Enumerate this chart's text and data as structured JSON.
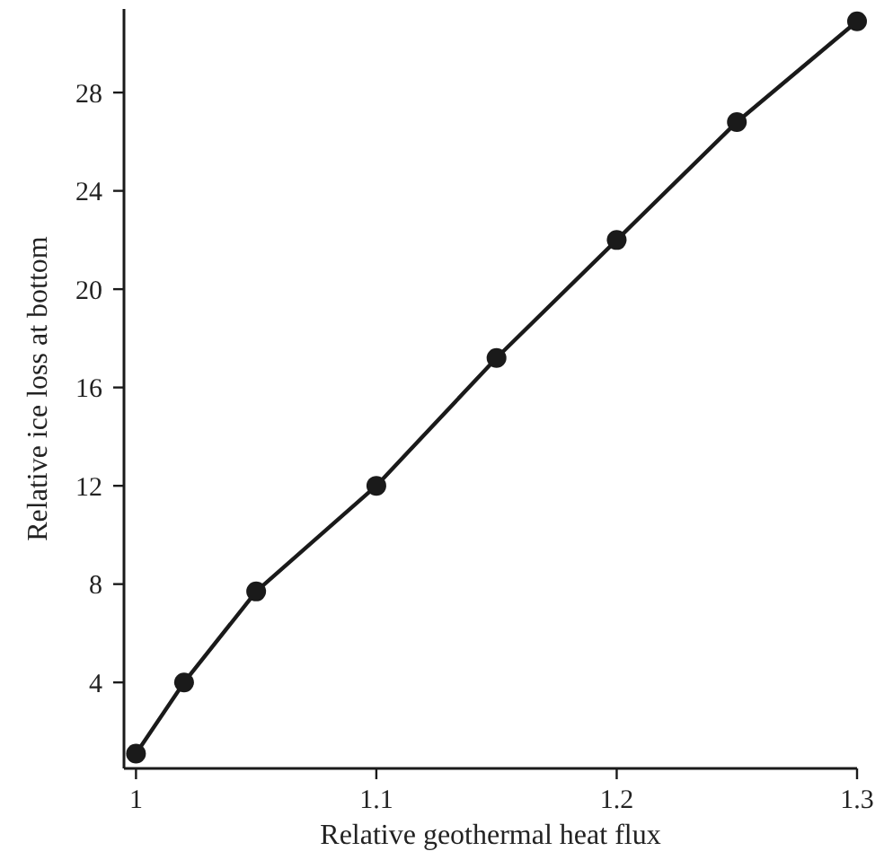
{
  "chart_data": {
    "type": "line",
    "xlabel": "Relative geothermal heat flux",
    "ylabel": "Relative ice loss at bottom",
    "x": [
      1,
      1.02,
      1.05,
      1.1,
      1.15,
      1.2,
      1.25,
      1.3
    ],
    "series": [
      {
        "color": "#1a1a1a",
        "values": [
          1.1,
          4.0,
          7.7,
          12.0,
          17.2,
          22.0,
          26.8,
          30.9
        ]
      }
    ],
    "xlim": [
      0.995,
      1.3
    ],
    "ylim": [
      0.5,
      31.4
    ],
    "xticks": [
      1,
      1.1,
      1.2,
      1.3
    ],
    "yticks": [
      4,
      8,
      12,
      16,
      20,
      24,
      28
    ],
    "marker": "circle",
    "line_style": "solid"
  }
}
